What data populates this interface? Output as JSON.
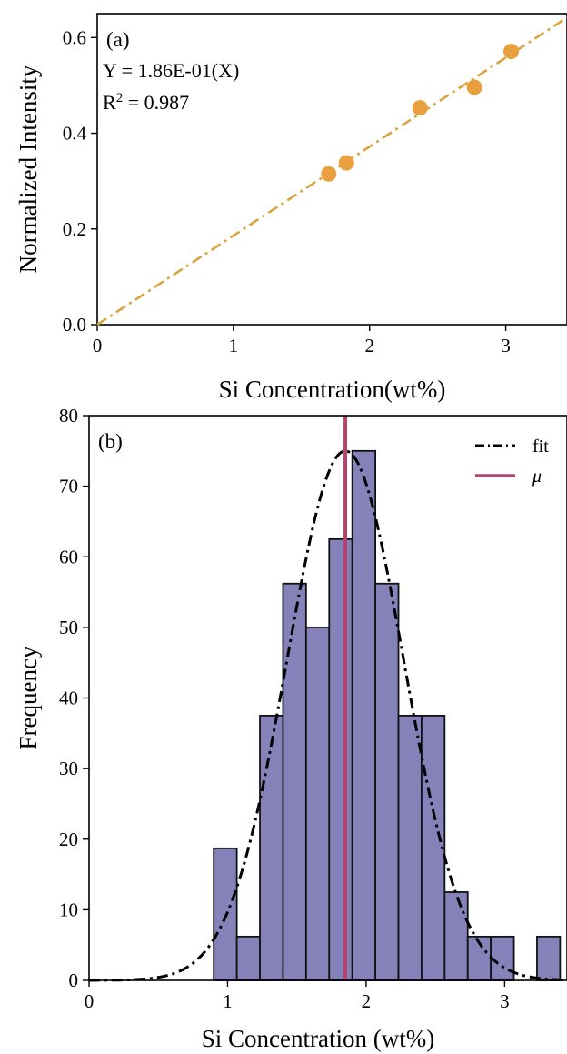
{
  "chart_data": [
    {
      "type": "scatter",
      "panel_label": "(a)",
      "xlabel": "Si Concentration(wt%)",
      "ylabel": "Normalized Intensity",
      "xlim": [
        0,
        3.45
      ],
      "ylim": [
        0,
        0.65
      ],
      "xticks": [
        "0",
        "1",
        "2",
        "3"
      ],
      "yticks": [
        "0.0",
        "0.2",
        "0.4",
        "0.6"
      ],
      "points": [
        {
          "x": 1.7,
          "y": 0.315
        },
        {
          "x": 1.83,
          "y": 0.338
        },
        {
          "x": 2.37,
          "y": 0.453
        },
        {
          "x": 2.77,
          "y": 0.496
        },
        {
          "x": 3.04,
          "y": 0.571
        }
      ],
      "fit": {
        "slope": 0.186,
        "intercept": 0,
        "style": "dash-dot"
      },
      "equation_text": "Y = 1.86E-01(X)",
      "r2_prefix": "R",
      "r2_sup": "2",
      "r2_value": " = 0.987",
      "colors": {
        "points": "#E8A13E",
        "fit": "#D9A440"
      },
      "grid": false
    },
    {
      "type": "bar",
      "panel_label": "(b)",
      "xlabel": "Si Concentration (wt%)",
      "ylabel": "Frequency",
      "xlim": [
        0,
        3.45
      ],
      "ylim": [
        0,
        80
      ],
      "xticks": [
        "0",
        "1",
        "2",
        "3"
      ],
      "yticks": [
        "0",
        "10",
        "20",
        "30",
        "40",
        "50",
        "60",
        "70",
        "80"
      ],
      "bin_width": 0.1667,
      "bins": [
        {
          "x0": 0.9,
          "value": 18.7
        },
        {
          "x0": 1.0667,
          "value": 6.2
        },
        {
          "x0": 1.2333,
          "value": 37.5
        },
        {
          "x0": 1.4,
          "value": 56.2
        },
        {
          "x0": 1.5667,
          "value": 50.0
        },
        {
          "x0": 1.7333,
          "value": 62.5
        },
        {
          "x0": 1.9,
          "value": 75.0
        },
        {
          "x0": 2.0667,
          "value": 56.2
        },
        {
          "x0": 2.2333,
          "value": 37.5
        },
        {
          "x0": 2.4,
          "value": 37.5
        },
        {
          "x0": 2.5667,
          "value": 12.5
        },
        {
          "x0": 2.7333,
          "value": 6.2
        },
        {
          "x0": 2.9,
          "value": 6.2
        },
        {
          "x0": 3.0667,
          "value": 0
        },
        {
          "x0": 3.2333,
          "value": 6.2
        }
      ],
      "fit": {
        "mean": 1.85,
        "sigma": 0.42,
        "peak": 75,
        "style": "dash-dot"
      },
      "mu_line": 1.85,
      "legend": {
        "position": "top-right",
        "entries": [
          "fit",
          "μ"
        ]
      },
      "colors": {
        "bars": "#8581B9",
        "bar_edge": "#111111",
        "fit": "#000000",
        "mu": "#B0456F"
      },
      "grid": false
    }
  ]
}
